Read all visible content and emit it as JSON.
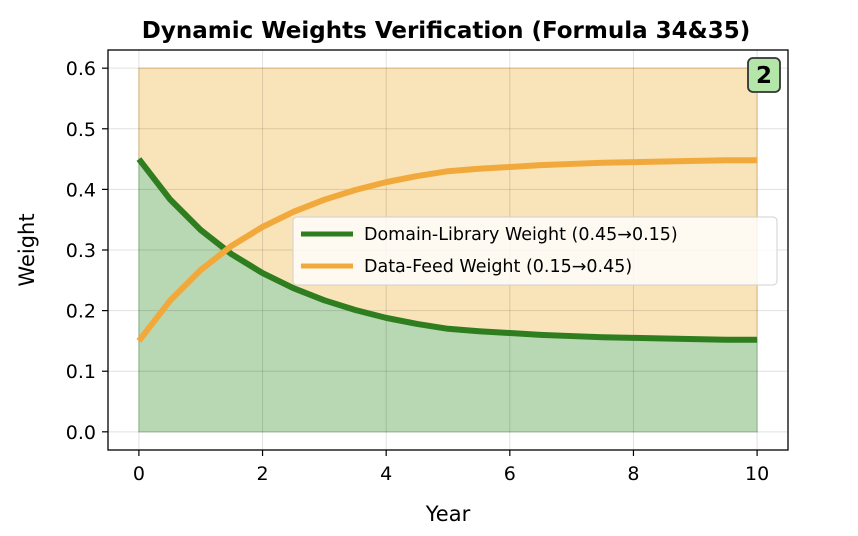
{
  "chart_data": {
    "type": "line",
    "title": "Dynamic Weights Verification (Formula 34&35)",
    "xlabel": "Year",
    "ylabel": "Weight",
    "xlim": [
      -0.5,
      10.5
    ],
    "ylim": [
      -0.03,
      0.63
    ],
    "x_ticks": [
      "0",
      "2",
      "4",
      "6",
      "8",
      "10"
    ],
    "y_ticks": [
      "0.0",
      "0.1",
      "0.2",
      "0.3",
      "0.4",
      "0.5",
      "0.6"
    ],
    "grid": true,
    "legend_position": "center-right",
    "badge": "2",
    "x": [
      0,
      0.5,
      1,
      1.5,
      2,
      2.5,
      3,
      3.5,
      4,
      4.5,
      5,
      5.5,
      6,
      6.5,
      7,
      7.5,
      8,
      8.5,
      9,
      9.5,
      10
    ],
    "series": [
      {
        "name": "Domain-Library Weight (0.45→0.15)",
        "color": "#2e7d1f",
        "fill": "#b8d7b3",
        "values": [
          0.45,
          0.384,
          0.333,
          0.293,
          0.262,
          0.237,
          0.217,
          0.201,
          0.188,
          0.178,
          0.17,
          0.166,
          0.163,
          0.16,
          0.158,
          0.156,
          0.155,
          0.154,
          0.153,
          0.152,
          0.152
        ]
      },
      {
        "name": "Data-Feed Weight (0.15→0.45)",
        "color": "#f2a93b",
        "fill": "#f9e3b8",
        "values": [
          0.15,
          0.216,
          0.267,
          0.307,
          0.338,
          0.363,
          0.383,
          0.399,
          0.412,
          0.422,
          0.43,
          0.434,
          0.437,
          0.44,
          0.442,
          0.444,
          0.445,
          0.446,
          0.447,
          0.448,
          0.448
        ]
      }
    ],
    "shaded_band_top": 0.6,
    "badge_color": "#b3e6a8"
  }
}
